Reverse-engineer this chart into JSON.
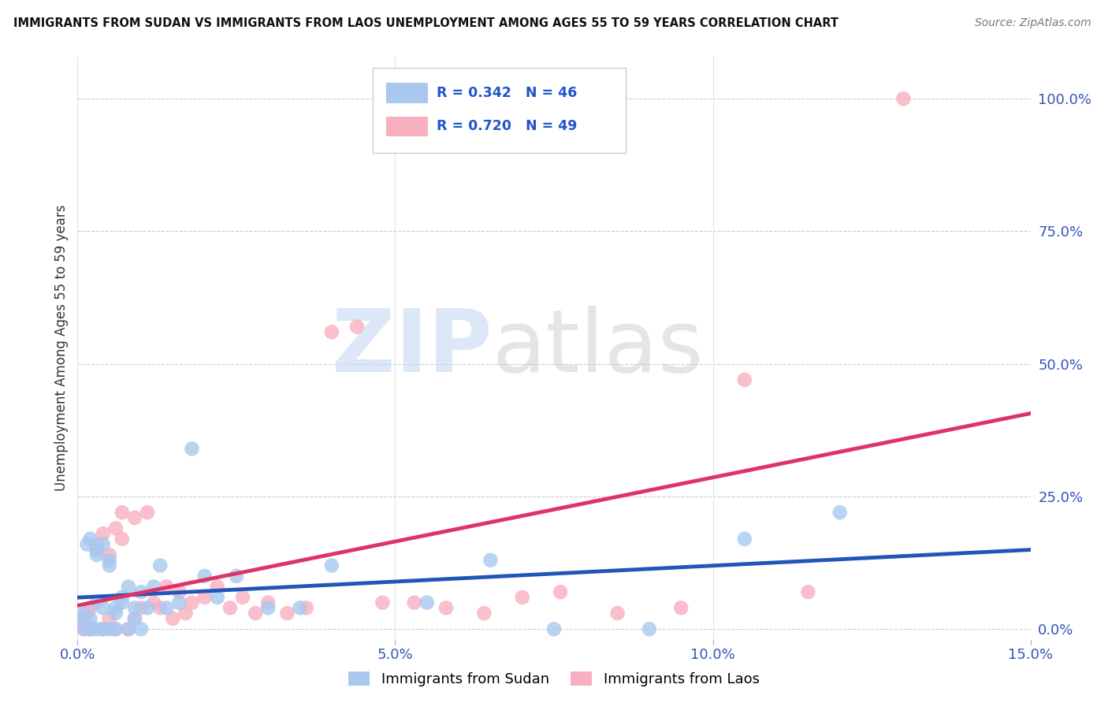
{
  "title": "IMMIGRANTS FROM SUDAN VS IMMIGRANTS FROM LAOS UNEMPLOYMENT AMONG AGES 55 TO 59 YEARS CORRELATION CHART",
  "source": "Source: ZipAtlas.com",
  "ylabel": "Unemployment Among Ages 55 to 59 years",
  "xlim": [
    0.0,
    0.15
  ],
  "ylim": [
    -0.02,
    1.08
  ],
  "xticks": [
    0.0,
    0.05,
    0.1,
    0.15
  ],
  "xtick_labels": [
    "0.0%",
    "5.0%",
    "10.0%",
    "15.0%"
  ],
  "yticks_right": [
    0.0,
    0.25,
    0.5,
    0.75,
    1.0
  ],
  "ytick_right_labels": [
    "0.0%",
    "25.0%",
    "50.0%",
    "75.0%",
    "100.0%"
  ],
  "sudan_color": "#a8c8f0",
  "laos_color": "#f8b0c0",
  "sudan_line_color": "#2255bb",
  "laos_line_color": "#dd3366",
  "background_color": "#ffffff",
  "grid_color": "#cccccc",
  "sudan_x": [
    0.0005,
    0.001,
    0.001,
    0.0015,
    0.002,
    0.002,
    0.002,
    0.003,
    0.003,
    0.003,
    0.003,
    0.004,
    0.004,
    0.004,
    0.005,
    0.005,
    0.005,
    0.006,
    0.006,
    0.006,
    0.007,
    0.007,
    0.008,
    0.008,
    0.009,
    0.009,
    0.01,
    0.01,
    0.011,
    0.012,
    0.013,
    0.014,
    0.016,
    0.018,
    0.02,
    0.022,
    0.025,
    0.03,
    0.035,
    0.04,
    0.055,
    0.065,
    0.075,
    0.09,
    0.105,
    0.12
  ],
  "sudan_y": [
    0.02,
    0.0,
    0.03,
    0.16,
    0.17,
    0.0,
    0.02,
    0.15,
    0.14,
    0.05,
    0.0,
    0.16,
    0.0,
    0.04,
    0.13,
    0.12,
    0.0,
    0.04,
    0.03,
    0.0,
    0.06,
    0.05,
    0.08,
    0.0,
    0.04,
    0.02,
    0.07,
    0.0,
    0.04,
    0.08,
    0.12,
    0.04,
    0.05,
    0.34,
    0.1,
    0.06,
    0.1,
    0.04,
    0.04,
    0.12,
    0.05,
    0.13,
    0.0,
    0.0,
    0.17,
    0.22
  ],
  "laos_x": [
    0.0005,
    0.001,
    0.001,
    0.0015,
    0.002,
    0.002,
    0.003,
    0.003,
    0.004,
    0.004,
    0.005,
    0.005,
    0.006,
    0.006,
    0.007,
    0.007,
    0.008,
    0.009,
    0.009,
    0.01,
    0.011,
    0.012,
    0.013,
    0.014,
    0.015,
    0.016,
    0.017,
    0.018,
    0.02,
    0.022,
    0.024,
    0.026,
    0.028,
    0.03,
    0.033,
    0.036,
    0.04,
    0.044,
    0.048,
    0.053,
    0.058,
    0.064,
    0.07,
    0.076,
    0.085,
    0.095,
    0.105,
    0.115,
    0.13
  ],
  "laos_y": [
    0.01,
    0.02,
    0.0,
    0.03,
    0.04,
    0.0,
    0.16,
    0.15,
    0.18,
    0.0,
    0.14,
    0.02,
    0.19,
    0.0,
    0.17,
    0.22,
    0.0,
    0.21,
    0.02,
    0.04,
    0.22,
    0.05,
    0.04,
    0.08,
    0.02,
    0.07,
    0.03,
    0.05,
    0.06,
    0.08,
    0.04,
    0.06,
    0.03,
    0.05,
    0.03,
    0.04,
    0.56,
    0.57,
    0.05,
    0.05,
    0.04,
    0.03,
    0.06,
    0.07,
    0.03,
    0.04,
    0.47,
    0.07,
    1.0
  ],
  "legend_R_sudan": "R = 0.342",
  "legend_N_sudan": "N = 46",
  "legend_R_laos": "R = 0.720",
  "legend_N_laos": "N = 49",
  "legend_label_sudan": "Immigrants from Sudan",
  "legend_label_laos": "Immigrants from Laos"
}
